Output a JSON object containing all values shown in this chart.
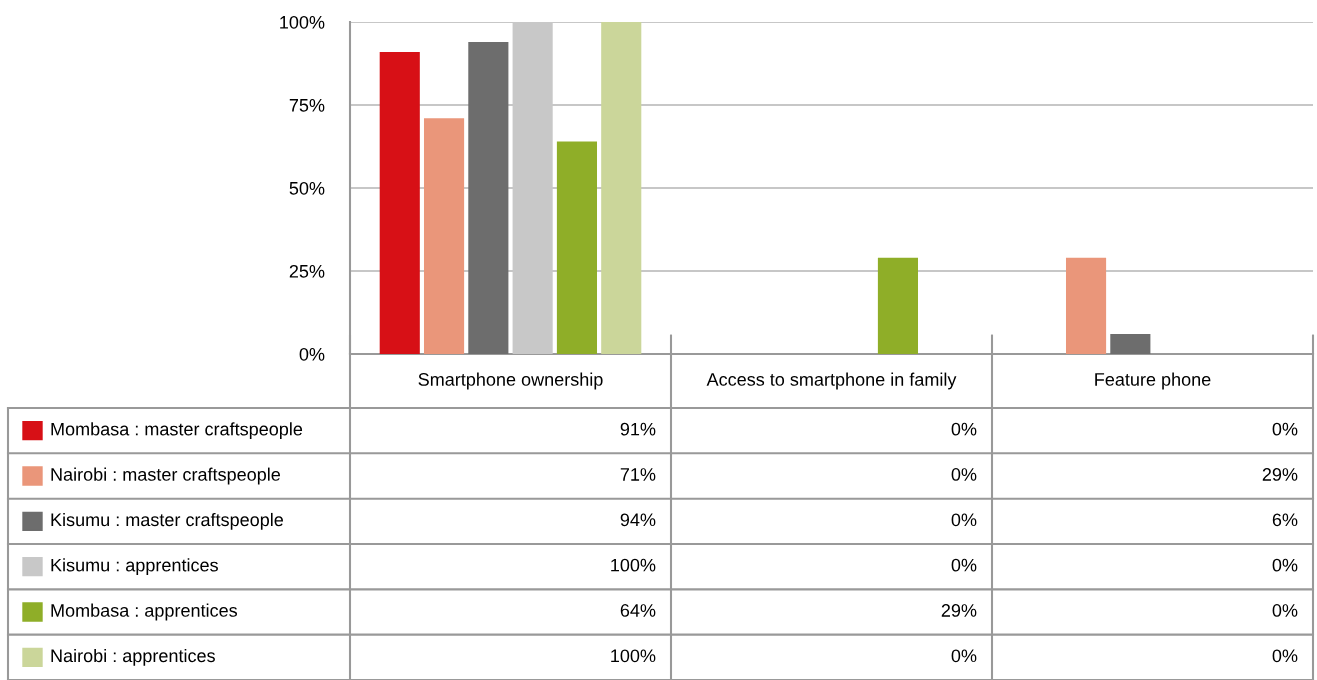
{
  "chart_data": {
    "type": "bar",
    "categories": [
      "Smartphone ownership",
      "Access to smartphone in family",
      "Feature phone"
    ],
    "series": [
      {
        "name": "Mombasa : master craftspeople",
        "color": "#d71016",
        "values": [
          91,
          0,
          0
        ],
        "value_labels": [
          "91%",
          "0%",
          "0%"
        ]
      },
      {
        "name": "Nairobi : master craftspeople",
        "color": "#ea967a",
        "values": [
          71,
          0,
          29
        ],
        "value_labels": [
          "71%",
          "0%",
          "29%"
        ]
      },
      {
        "name": "Kisumu : master craftspeople",
        "color": "#6d6d6d",
        "values": [
          94,
          0,
          6
        ],
        "value_labels": [
          "94%",
          "0%",
          "6%"
        ]
      },
      {
        "name": "Kisumu : apprentices",
        "color": "#c8c8c8",
        "values": [
          100,
          0,
          0
        ],
        "value_labels": [
          "100%",
          "0%",
          "0%"
        ]
      },
      {
        "name": "Mombasa : apprentices",
        "color": "#8fae28",
        "values": [
          64,
          29,
          0
        ],
        "value_labels": [
          "64%",
          "29%",
          "0%"
        ]
      },
      {
        "name": "Nairobi : apprentices",
        "color": "#cbd69a",
        "values": [
          100,
          0,
          0
        ],
        "value_labels": [
          "100%",
          "0%",
          "0%"
        ]
      }
    ],
    "ylim": [
      0,
      100
    ],
    "yticks": [
      {
        "value": 0,
        "label": "0%"
      },
      {
        "value": 25,
        "label": "25%"
      },
      {
        "value": 50,
        "label": "50%"
      },
      {
        "value": 75,
        "label": "75%"
      },
      {
        "value": 100,
        "label": "100%"
      }
    ],
    "grid": "y",
    "legend": "bottom",
    "data_labels": true
  }
}
